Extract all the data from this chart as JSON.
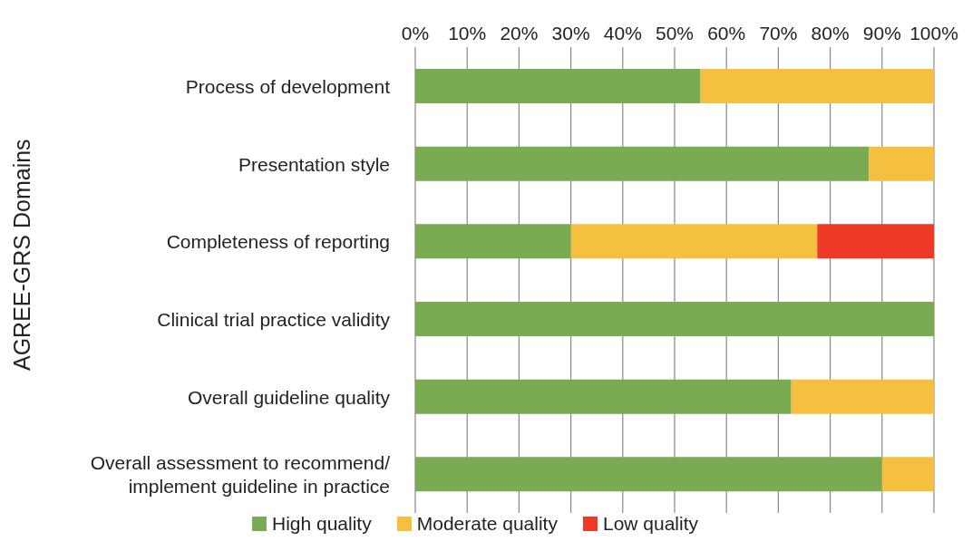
{
  "chart_data": {
    "type": "bar",
    "orientation": "horizontal",
    "stacked": true,
    "ylabel": "AGREE-GRS Domains",
    "categories": [
      "Process of development",
      "Presentation style",
      "Completeness of reporting",
      "Clinical trial practice validity",
      "Overall guideline quality",
      "Overall assessment to recommend/ implement guideline in practice"
    ],
    "series": [
      {
        "name": "High quality",
        "color": "#7aab52",
        "values": [
          55,
          87.5,
          30,
          100,
          72.5,
          90
        ]
      },
      {
        "name": "Moderate quality",
        "color": "#f5c040",
        "values": [
          45,
          12.5,
          47.5,
          0,
          27.5,
          10
        ]
      },
      {
        "name": "Low quality",
        "color": "#ee3a24",
        "values": [
          0,
          0,
          22.5,
          0,
          0,
          0
        ]
      }
    ],
    "xlim": [
      0,
      100
    ],
    "xticks": [
      {
        "value": 0,
        "label": "0%"
      },
      {
        "value": 10,
        "label": "10%"
      },
      {
        "value": 20,
        "label": "20%"
      },
      {
        "value": 30,
        "label": "30%"
      },
      {
        "value": 40,
        "label": "40%"
      },
      {
        "value": 50,
        "label": "50%"
      },
      {
        "value": 60,
        "label": "60%"
      },
      {
        "value": 70,
        "label": "70%"
      },
      {
        "value": 80,
        "label": "80%"
      },
      {
        "value": 90,
        "label": "90%"
      },
      {
        "value": 100,
        "label": "100%"
      }
    ],
    "grid": "x",
    "legend": "bottom"
  }
}
